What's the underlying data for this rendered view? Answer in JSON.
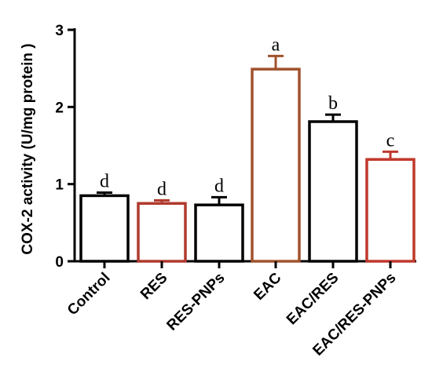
{
  "chart_data": {
    "type": "bar",
    "title": "",
    "xlabel": "",
    "ylabel": "COX-2 activity (U/mg protein )",
    "ylim": [
      0,
      3
    ],
    "yticks": [
      "0",
      "1",
      "2",
      "3"
    ],
    "categories": [
      "Control",
      "RES",
      "RES-PNPs",
      "EAC",
      "EAC/RES",
      "EAC/RES-PNPs"
    ],
    "values": [
      0.85,
      0.75,
      0.73,
      2.49,
      1.81,
      1.32
    ],
    "errors": [
      0.04,
      0.04,
      0.1,
      0.17,
      0.09,
      0.1
    ],
    "significance": [
      "d",
      "d",
      "d",
      "a",
      "b",
      "c"
    ],
    "bar_edge_colors": [
      "#000000",
      "#b03a2e",
      "#000000",
      "#a0522d",
      "#000000",
      "#c0392b"
    ],
    "grid": false
  }
}
